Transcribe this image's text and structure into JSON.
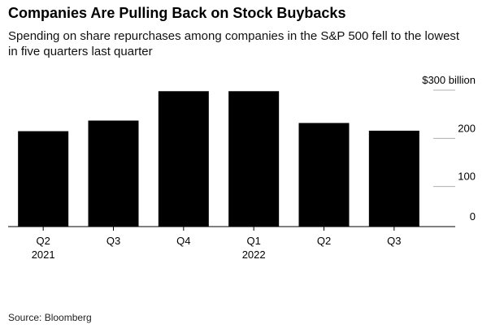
{
  "title": "Companies Are Pulling Back on Stock Buybacks",
  "subtitle": "Spending on share repurchases among companies in the S&P 500 fell to the lowest in five quarters last quarter",
  "source": "Source: Bloomberg",
  "chart_data": {
    "type": "bar",
    "categories": [
      "Q2",
      "Q3",
      "Q4",
      "Q1",
      "Q2",
      "Q3"
    ],
    "year_labels": [
      "2021",
      "",
      "",
      "2022",
      "",
      ""
    ],
    "values": [
      198,
      220,
      281,
      281,
      215,
      199
    ],
    "unit": "$ billion",
    "ylim": [
      0,
      300
    ],
    "yticks": [
      0,
      100,
      200,
      300
    ],
    "ytick_labels": [
      "0",
      "100",
      "200",
      "$300 billion"
    ],
    "bar_color": "#000000",
    "grid": false,
    "y_axis_position": "right"
  }
}
